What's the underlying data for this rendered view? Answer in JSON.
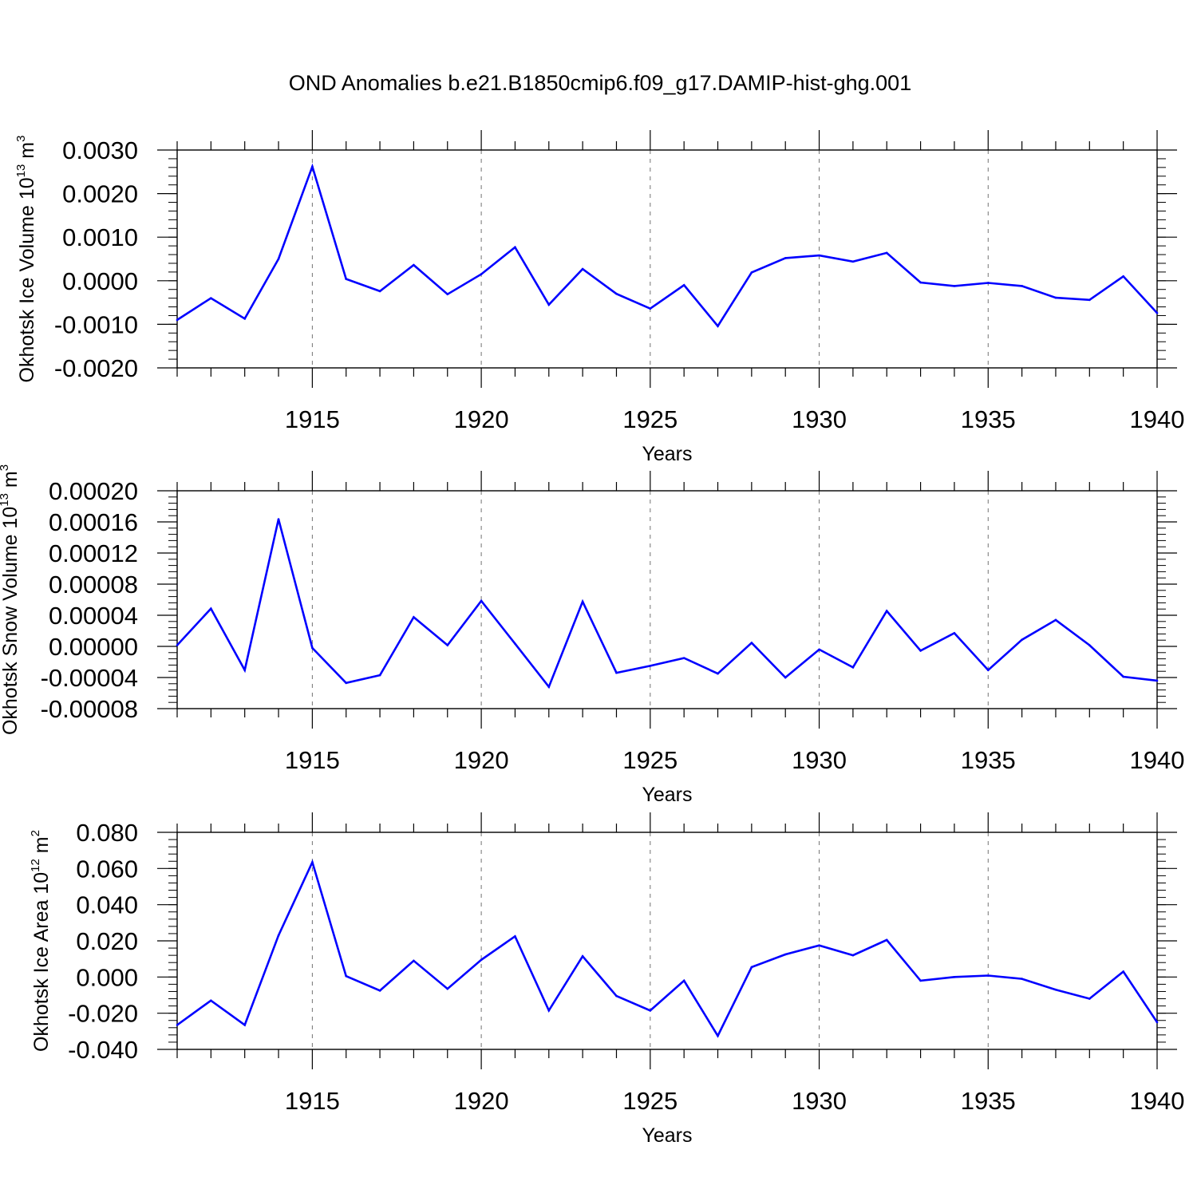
{
  "chart_data": [
    {
      "type": "line",
      "title": "OND Anomalies b.e21.B1850cmip6.f09_g17.DAMIP-hist-ghg.001",
      "ylabel": {
        "prefix": "Okhotsk Ice Volume 10",
        "exp": "13",
        "unit": " m",
        "unit_exp": "3"
      },
      "xlabel": "Years",
      "xlim": [
        1911,
        1940
      ],
      "ylim": [
        -0.002,
        0.003
      ],
      "yticks": [
        "0.0030",
        "0.0020",
        "0.0010",
        "0.0000",
        "-0.0010",
        "-0.0020"
      ],
      "ytick_values": [
        0.003,
        0.002,
        0.001,
        0.0,
        -0.001,
        -0.002
      ],
      "xticks": [
        "1915",
        "1920",
        "1925",
        "1930",
        "1935",
        "1940"
      ],
      "xtick_values": [
        1915,
        1920,
        1925,
        1930,
        1935,
        1940
      ],
      "color": "#0000ff",
      "x": [
        1911,
        1912,
        1913,
        1914,
        1915,
        1916,
        1917,
        1918,
        1919,
        1920,
        1921,
        1922,
        1923,
        1924,
        1925,
        1926,
        1927,
        1928,
        1929,
        1930,
        1931,
        1932,
        1933,
        1934,
        1935,
        1936,
        1937,
        1938,
        1939,
        1940
      ],
      "values": [
        -0.0009,
        -0.0004,
        -0.00087,
        0.0005,
        0.00262,
        4e-05,
        -0.00024,
        0.00036,
        -0.00031,
        0.00015,
        0.00077,
        -0.00055,
        0.00027,
        -0.0003,
        -0.00064,
        -0.0001,
        -0.00104,
        0.00019,
        0.00052,
        0.00058,
        0.00044,
        0.00064,
        -4e-05,
        -0.00012,
        -5e-05,
        -0.00012,
        -0.00039,
        -0.00044,
        0.0001,
        -0.00074
      ]
    },
    {
      "type": "line",
      "ylabel": {
        "prefix": "Okhotsk Snow Volume 10",
        "exp": "13",
        "unit": " m",
        "unit_exp": "3"
      },
      "xlabel": "Years",
      "xlim": [
        1911,
        1940
      ],
      "ylim": [
        -8e-05,
        0.0002
      ],
      "yticks": [
        "0.00020",
        "0.00016",
        "0.00012",
        "0.00008",
        "0.00004",
        "0.00000",
        "-0.00004",
        "-0.00008"
      ],
      "ytick_values": [
        0.0002,
        0.00016,
        0.00012,
        8e-05,
        4e-05,
        0.0,
        -4e-05,
        -8e-05
      ],
      "xticks": [
        "1915",
        "1920",
        "1925",
        "1930",
        "1935",
        "1940"
      ],
      "xtick_values": [
        1915,
        1920,
        1925,
        1930,
        1935,
        1940
      ],
      "color": "#0000ff",
      "x": [
        1911,
        1912,
        1913,
        1914,
        1915,
        1916,
        1917,
        1918,
        1919,
        1920,
        1921,
        1922,
        1923,
        1924,
        1925,
        1926,
        1927,
        1928,
        1929,
        1930,
        1931,
        1932,
        1933,
        1934,
        1935,
        1936,
        1937,
        1938,
        1939,
        1940
      ],
      "values": [
        1.5e-06,
        4.85e-05,
        -3.05e-05,
        0.0001635,
        -2e-06,
        -4.7e-05,
        -3.7e-05,
        3.75e-05,
        1.5e-06,
        5.85e-05,
        3.5e-06,
        -5.2e-05,
        5.75e-05,
        -3.4e-05,
        -2.5e-05,
        -1.5e-05,
        -3.5e-05,
        4.5e-06,
        -4e-05,
        -4e-06,
        -2.7e-05,
        4.55e-05,
        -5.5e-06,
        1.7e-05,
        -3.05e-05,
        8.5e-06,
        3.4e-05,
        1.5e-06,
        -3.9e-05,
        -4.4e-05
      ]
    },
    {
      "type": "line",
      "ylabel": {
        "prefix": "Okhotsk Ice Area 10",
        "exp": "12",
        "unit": " m",
        "unit_exp": "2"
      },
      "xlabel": "Years",
      "xlim": [
        1911,
        1940
      ],
      "ylim": [
        -0.04,
        0.08
      ],
      "yticks": [
        "0.080",
        "0.060",
        "0.040",
        "0.020",
        "0.000",
        "-0.020",
        "-0.040"
      ],
      "ytick_values": [
        0.08,
        0.06,
        0.04,
        0.02,
        0.0,
        -0.02,
        -0.04
      ],
      "xticks": [
        "1915",
        "1920",
        "1925",
        "1930",
        "1935",
        "1940"
      ],
      "xtick_values": [
        1915,
        1920,
        1925,
        1930,
        1935,
        1940
      ],
      "color": "#0000ff",
      "x": [
        1911,
        1912,
        1913,
        1914,
        1915,
        1916,
        1917,
        1918,
        1919,
        1920,
        1921,
        1922,
        1923,
        1924,
        1925,
        1926,
        1927,
        1928,
        1929,
        1930,
        1931,
        1932,
        1933,
        1934,
        1935,
        1936,
        1937,
        1938,
        1939,
        1940
      ],
      "values": [
        -0.0265,
        -0.013,
        -0.0265,
        0.023,
        0.0635,
        0.0005,
        -0.0075,
        0.009,
        -0.0065,
        0.0095,
        0.0225,
        -0.0185,
        0.0115,
        -0.0105,
        -0.0185,
        -0.002,
        -0.0325,
        0.0055,
        0.0125,
        0.0175,
        0.012,
        0.0205,
        -0.002,
        0.0,
        0.0008,
        -0.001,
        -0.007,
        -0.012,
        0.003,
        -0.025
      ]
    }
  ]
}
